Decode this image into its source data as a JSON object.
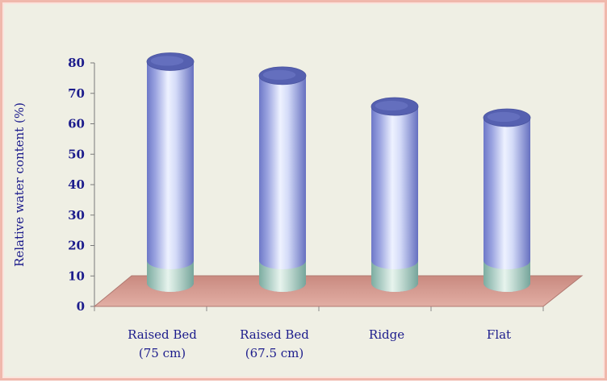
{
  "chart_data": {
    "type": "bar",
    "style": "3d-cylinder",
    "categories": [
      [
        "Raised Bed",
        "(75 cm)"
      ],
      [
        "Raised Bed",
        "(67.5 cm)"
      ],
      [
        "Ridge"
      ],
      [
        "Flat"
      ]
    ],
    "values": [
      79,
      74,
      63,
      59
    ],
    "title": "",
    "xlabel": "",
    "ylabel": "Relative water content (%)",
    "ylim": [
      0,
      80
    ],
    "yticks": [
      0,
      10,
      20,
      30,
      40,
      50,
      60,
      70,
      80
    ],
    "grid": false,
    "legend": "none",
    "colors": {
      "background": "#efefe4",
      "border": "#f0b8ac",
      "floor": "#d89a90",
      "bar_edge": "#6a74c4",
      "bar_top": "#5560b0",
      "bar_light": "#e6ecff",
      "bar_base": "#bfe0c8",
      "text": "#1c1c8c"
    }
  }
}
